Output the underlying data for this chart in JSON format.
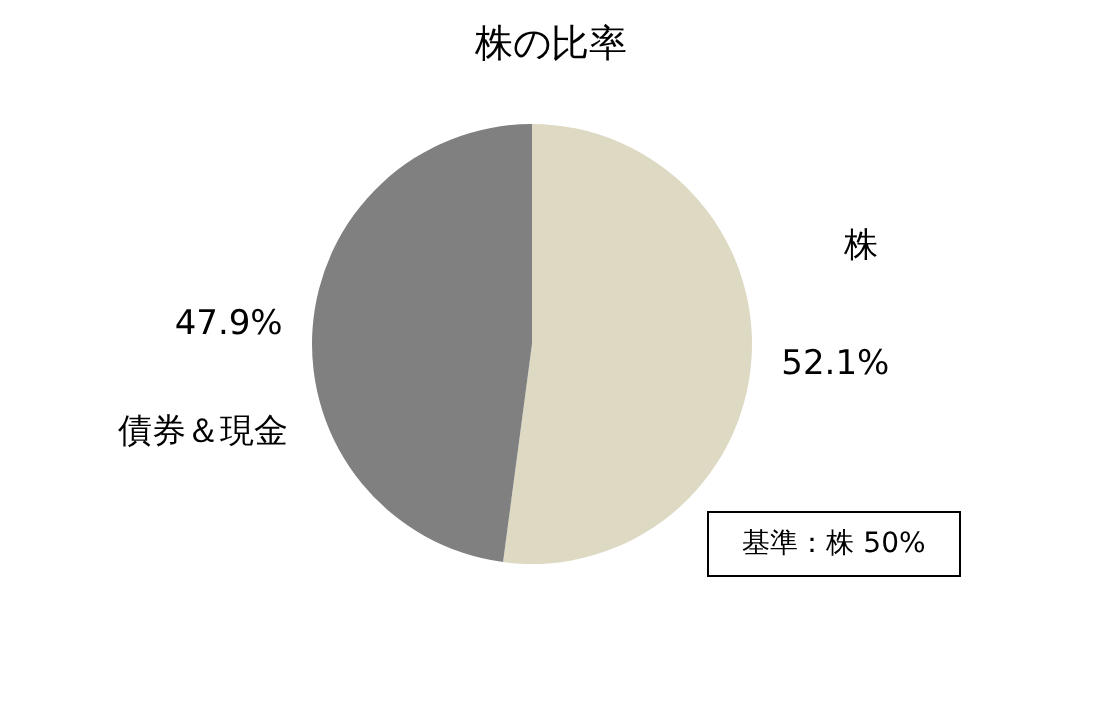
{
  "chart_data": {
    "type": "pie",
    "title": "株の比率",
    "categories": [
      "株",
      "債券＆現金"
    ],
    "values": [
      52.1,
      47.9
    ],
    "colors": [
      "#ddd9c3",
      "#808080"
    ],
    "value_labels": [
      "52.1%",
      "47.9%"
    ],
    "annotations": [
      "基準：株  50%"
    ],
    "legend": false
  }
}
